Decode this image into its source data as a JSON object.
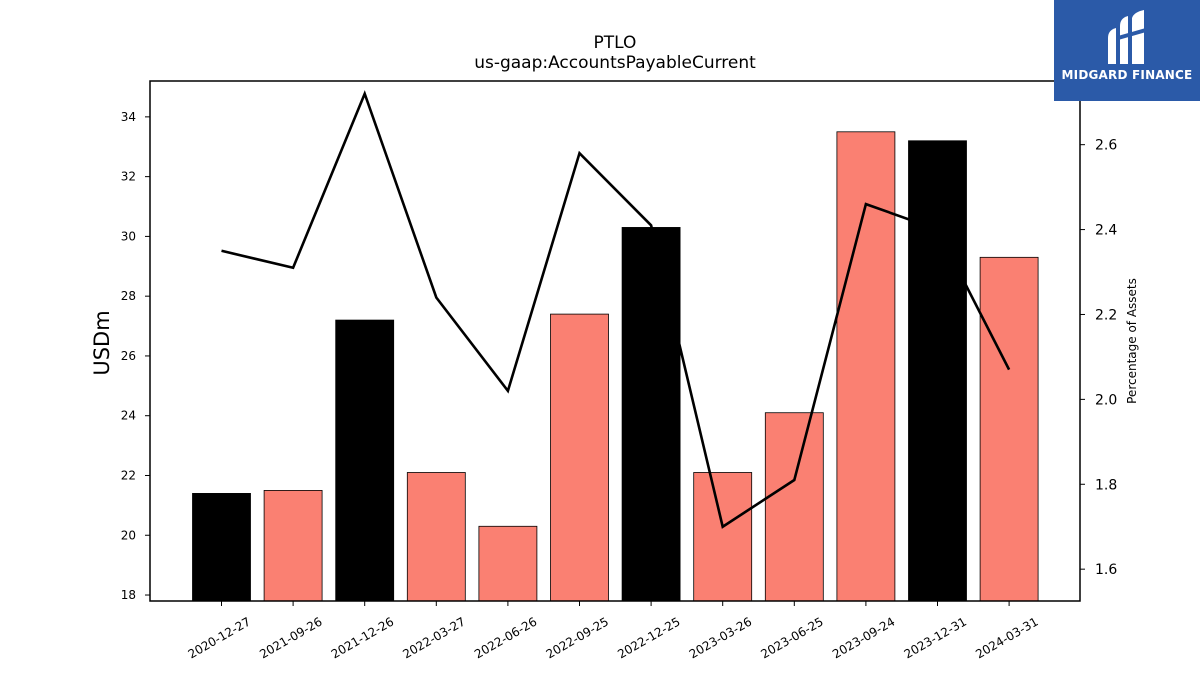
{
  "chart_data": {
    "type": "bar",
    "title": "PTLO",
    "subtitle": "us-gaap:AccountsPayableCurrent",
    "ylabel": "USDm",
    "y2label": "Percentage of Assets",
    "categories": [
      "2020-12-27",
      "2021-09-26",
      "2021-12-26",
      "2022-03-27",
      "2022-06-26",
      "2022-09-25",
      "2022-12-25",
      "2023-03-26",
      "2023-06-25",
      "2023-09-24",
      "2023-12-31",
      "2024-03-31"
    ],
    "bar_series": {
      "name": "",
      "values": [
        21.4,
        21.5,
        27.2,
        22.1,
        20.3,
        27.4,
        30.3,
        22.1,
        24.1,
        33.5,
        33.2,
        29.3
      ],
      "colors": [
        "#000000",
        "#fa8072",
        "#000000",
        "#fa8072",
        "#fa8072",
        "#fa8072",
        "#000000",
        "#fa8072",
        "#fa8072",
        "#fa8072",
        "#000000",
        "#fa8072"
      ]
    },
    "line_series": {
      "name": "",
      "axis": "right",
      "values": [
        2.35,
        2.31,
        2.72,
        2.24,
        2.02,
        2.58,
        2.41,
        1.7,
        1.81,
        2.46,
        2.4,
        2.07
      ],
      "color": "#000000"
    },
    "ylim": [
      17.8,
      35.2
    ],
    "y2lim": [
      1.525,
      2.75
    ],
    "yticks": [
      18,
      20,
      22,
      24,
      26,
      28,
      30,
      32,
      34
    ],
    "y2ticks": [
      1.6,
      1.8,
      2.0,
      2.2,
      2.4,
      2.6
    ],
    "grid": false
  },
  "logo": {
    "text": "MIDGARD FINANCE"
  }
}
